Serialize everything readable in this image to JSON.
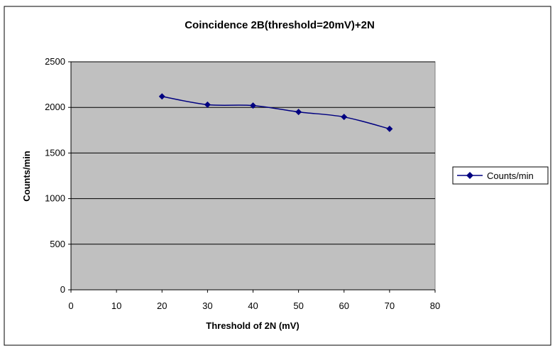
{
  "chart_data": {
    "type": "line",
    "title": "Coincidence 2B(threshold=20mV)+2N",
    "xlabel": "Threshold of 2N (mV)",
    "ylabel": "Counts/min",
    "xlim": [
      0,
      80
    ],
    "ylim": [
      0,
      2500
    ],
    "x_ticks": [
      "0",
      "10",
      "20",
      "30",
      "40",
      "50",
      "60",
      "70",
      "80"
    ],
    "y_ticks": [
      "0",
      "500",
      "1000",
      "1500",
      "2000",
      "2500"
    ],
    "grid": "horizontal",
    "legend_position": "right",
    "plot_background": "#c0c0c0",
    "series": [
      {
        "name": "Counts/min",
        "color": "#000080",
        "marker": "diamond",
        "x": [
          20,
          30,
          40,
          50,
          60,
          70
        ],
        "y": [
          2120,
          2030,
          2020,
          1950,
          1895,
          1765
        ]
      }
    ]
  }
}
